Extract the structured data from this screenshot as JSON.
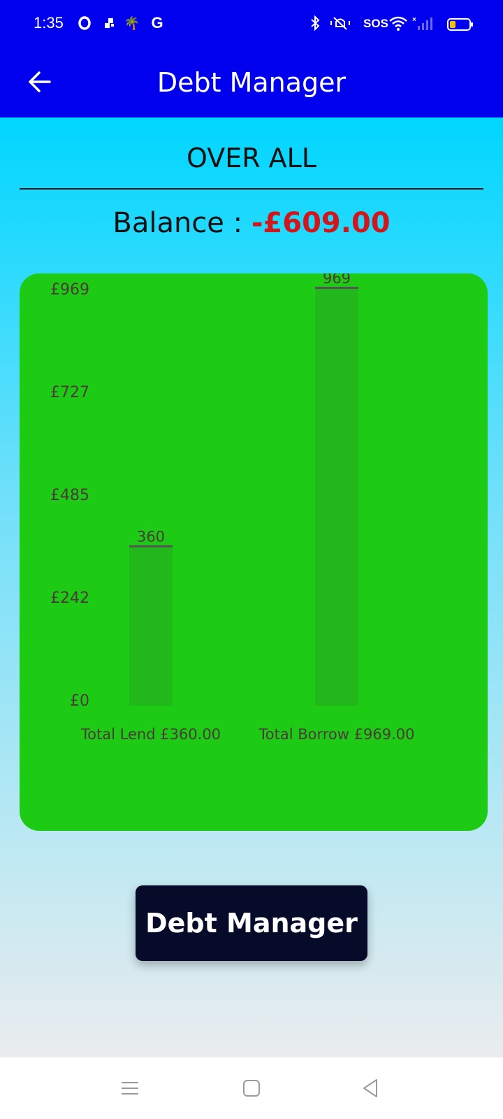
{
  "status_bar": {
    "time": "1:35",
    "left_icons": [
      "opera-icon",
      "grid-app-icon",
      "palm-tree-icon",
      "google-icon"
    ],
    "right_icons": [
      "bluetooth-icon",
      "mute-bell-icon",
      "sos-label",
      "wifi-icon",
      "signal-icon",
      "battery-icon"
    ],
    "sos": "SOS",
    "google_glyph": "G",
    "palm_glyph": "🌴",
    "colors": {
      "background": "#0000ee",
      "battery_fill": "#f6c000"
    }
  },
  "app_bar": {
    "title": "Debt Manager",
    "back_icon": "arrow-left-icon"
  },
  "summary": {
    "section_title": "OVER ALL",
    "balance_label": "Balance : ",
    "balance_value": "-£609.00",
    "colors": {
      "negative": "#d0171c"
    }
  },
  "chart_data": {
    "type": "bar",
    "categories": [
      "Total Lend £360.00",
      "Total Borrow £969.00"
    ],
    "values": [
      360,
      969
    ],
    "value_labels": [
      "360",
      "969"
    ],
    "y_ticks": [
      "£0",
      "£242",
      "£485",
      "£727",
      "£969"
    ],
    "ylim": [
      0,
      969
    ],
    "title": "",
    "xlabel": "",
    "ylabel": "",
    "grid": false,
    "colors": {
      "card": "#1dcb14",
      "bar": "#22b81c",
      "bar_top": "#555555",
      "text": "#4a3a3a"
    }
  },
  "actions": {
    "main_button_label": "Debt Manager"
  },
  "nav_bar": {
    "icons": [
      "menu-icon",
      "home-square-icon",
      "back-triangle-icon"
    ]
  }
}
